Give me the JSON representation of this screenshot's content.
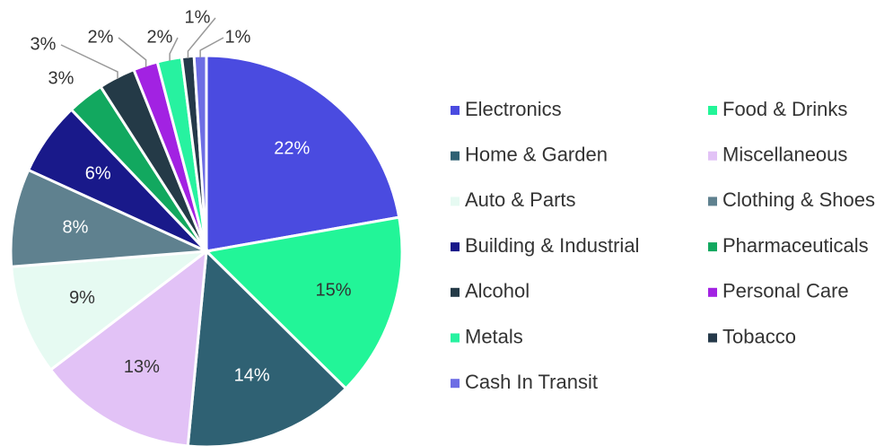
{
  "chart_data": {
    "type": "pie",
    "categories": [
      "Electronics",
      "Food & Drinks",
      "Home & Garden",
      "Miscellaneous",
      "Auto & Parts",
      "Clothing & Shoes",
      "Building & Industrial",
      "Pharmaceuticals",
      "Alcohol",
      "Personal Care",
      "Metals",
      "Tobacco",
      "Cash In Transit"
    ],
    "values": [
      22,
      15,
      14,
      13,
      9,
      8,
      6,
      3,
      3,
      2,
      2,
      1,
      1
    ],
    "value_labels": [
      "22%",
      "15%",
      "14%",
      "13%",
      "9%",
      "8%",
      "6%",
      "3%",
      "3%",
      "2%",
      "2%",
      "1%",
      "1%"
    ],
    "colors": [
      "#4a4be0",
      "#22f598",
      "#2f6173",
      "#e2c2f6",
      "#e6faf2",
      "#5f818f",
      "#19198a",
      "#12a85f",
      "#243a47",
      "#a222e2",
      "#27f2a0",
      "#25394a",
      "#6d6de4"
    ],
    "legend": "right"
  }
}
